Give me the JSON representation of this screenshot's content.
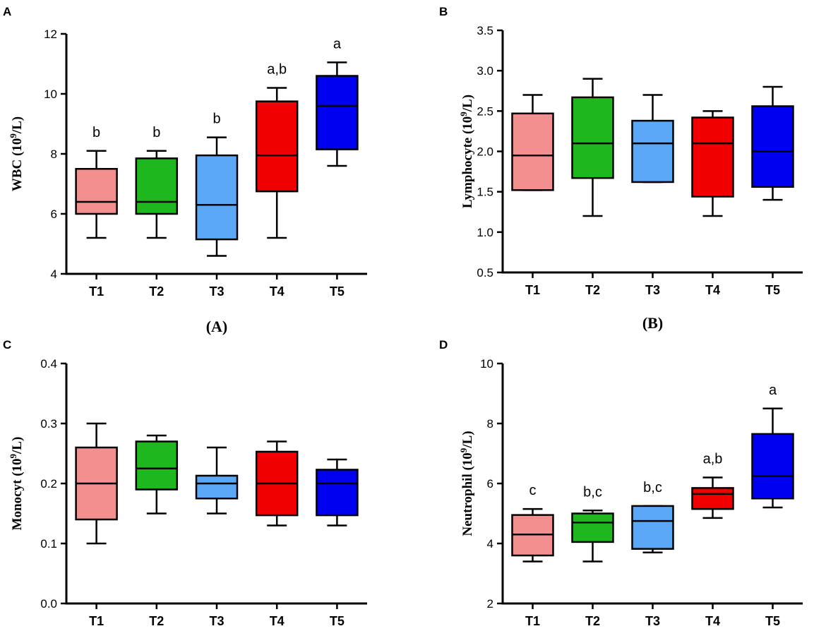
{
  "colors": [
    "#f48f8f",
    "#1eb81e",
    "#5aa8f6",
    "#f00000",
    "#0000f0"
  ],
  "chart_data": [
    {
      "type": "box",
      "panel": "A",
      "ylabel_main": "WBC (10",
      "ylabel_sup": "9",
      "ylabel_end": "/L)",
      "caption": "(A)",
      "categories": [
        "T1",
        "T2",
        "T3",
        "T4",
        "T5"
      ],
      "ylim": [
        4,
        12
      ],
      "yticks": [
        4,
        6,
        8,
        10,
        12
      ],
      "ytick_labels": [
        "4",
        "6",
        "8",
        "10",
        "12"
      ],
      "boxes": [
        {
          "min": 5.2,
          "q1": 6.0,
          "median": 6.4,
          "q3": 7.5,
          "max": 8.1
        },
        {
          "min": 5.2,
          "q1": 6.0,
          "median": 6.4,
          "q3": 7.85,
          "max": 8.1
        },
        {
          "min": 4.6,
          "q1": 5.15,
          "median": 6.3,
          "q3": 7.95,
          "max": 8.55
        },
        {
          "min": 5.2,
          "q1": 6.75,
          "median": 7.95,
          "q3": 9.75,
          "max": 10.2
        },
        {
          "min": 7.6,
          "q1": 8.15,
          "median": 9.6,
          "q3": 10.6,
          "max": 11.05
        }
      ],
      "significance": [
        "b",
        "b",
        "b",
        "a,b",
        "a"
      ]
    },
    {
      "type": "box",
      "panel": "B",
      "ylabel_main": "Lymphocyte (10",
      "ylabel_sup": "9",
      "ylabel_end": "/L)",
      "caption": "(B)",
      "categories": [
        "T1",
        "T2",
        "T3",
        "T4",
        "T5"
      ],
      "ylim": [
        0.5,
        3.5
      ],
      "yticks": [
        0.5,
        1.0,
        1.5,
        2.0,
        2.5,
        3.0,
        3.5
      ],
      "ytick_labels": [
        "0.5",
        "1.0",
        "1.5",
        "2.0",
        "2.5",
        "3.0",
        "3.5"
      ],
      "boxes": [
        {
          "min": 1.52,
          "q1": 1.52,
          "median": 1.95,
          "q3": 2.47,
          "max": 2.7
        },
        {
          "min": 1.2,
          "q1": 1.67,
          "median": 2.1,
          "q3": 2.67,
          "max": 2.9
        },
        {
          "min": 1.62,
          "q1": 1.62,
          "median": 2.1,
          "q3": 2.38,
          "max": 2.7
        },
        {
          "min": 1.2,
          "q1": 1.44,
          "median": 2.1,
          "q3": 2.42,
          "max": 2.5
        },
        {
          "min": 1.4,
          "q1": 1.56,
          "median": 2.0,
          "q3": 2.56,
          "max": 2.8
        }
      ],
      "significance": [
        "",
        "",
        "",
        "",
        ""
      ]
    },
    {
      "type": "box",
      "panel": "C",
      "ylabel_main": "Monocyt (10",
      "ylabel_sup": "9",
      "ylabel_end": "/L)",
      "caption": "",
      "categories": [
        "T1",
        "T2",
        "T3",
        "T4",
        "T5"
      ],
      "ylim": [
        0.0,
        0.4
      ],
      "yticks": [
        0.0,
        0.1,
        0.2,
        0.3,
        0.4
      ],
      "ytick_labels": [
        "0.0",
        "0.1",
        "0.2",
        "0.3",
        "0.4"
      ],
      "boxes": [
        {
          "min": 0.1,
          "q1": 0.14,
          "median": 0.2,
          "q3": 0.26,
          "max": 0.3
        },
        {
          "min": 0.15,
          "q1": 0.19,
          "median": 0.225,
          "q3": 0.27,
          "max": 0.28
        },
        {
          "min": 0.15,
          "q1": 0.175,
          "median": 0.2,
          "q3": 0.213,
          "max": 0.26
        },
        {
          "min": 0.13,
          "q1": 0.147,
          "median": 0.2,
          "q3": 0.253,
          "max": 0.27
        },
        {
          "min": 0.13,
          "q1": 0.147,
          "median": 0.2,
          "q3": 0.223,
          "max": 0.24
        }
      ],
      "significance": [
        "",
        "",
        "",
        "",
        ""
      ]
    },
    {
      "type": "box",
      "panel": "D",
      "ylabel_main": "Neutrophil (10",
      "ylabel_sup": "9",
      "ylabel_end": "/L)",
      "caption": "",
      "categories": [
        "T1",
        "T2",
        "T3",
        "T4",
        "T5"
      ],
      "ylim": [
        2,
        10
      ],
      "yticks": [
        2,
        4,
        6,
        8,
        10
      ],
      "ytick_labels": [
        "2",
        "4",
        "6",
        "8",
        "10"
      ],
      "boxes": [
        {
          "min": 3.4,
          "q1": 3.6,
          "median": 4.3,
          "q3": 4.95,
          "max": 5.15
        },
        {
          "min": 3.4,
          "q1": 4.05,
          "median": 4.7,
          "q3": 5.0,
          "max": 5.1
        },
        {
          "min": 3.7,
          "q1": 3.82,
          "median": 4.75,
          "q3": 5.25,
          "max": 5.25
        },
        {
          "min": 4.85,
          "q1": 5.15,
          "median": 5.65,
          "q3": 5.85,
          "max": 6.2
        },
        {
          "min": 5.2,
          "q1": 5.5,
          "median": 6.25,
          "q3": 7.65,
          "max": 8.5
        }
      ],
      "significance": [
        "c",
        "b,c",
        "b,c",
        "a,b",
        "a"
      ]
    }
  ]
}
